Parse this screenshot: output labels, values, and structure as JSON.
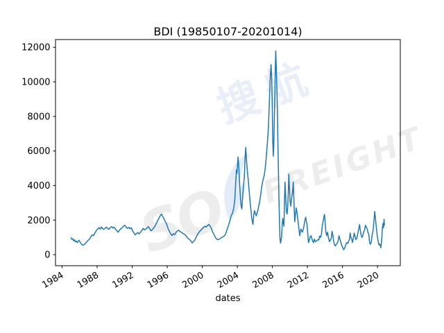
{
  "chart_data": {
    "type": "line",
    "title": "BDI (19850107-20201014)",
    "xlabel": "dates",
    "ylabel": "",
    "grid": false,
    "legend": null,
    "line_color": "#1f77b4",
    "x_tick_labels": [
      "1984",
      "1988",
      "1992",
      "1996",
      "2000",
      "2004",
      "2008",
      "2012",
      "2016",
      "2020"
    ],
    "x_tick_values": [
      1984,
      1988,
      1992,
      1996,
      2000,
      2004,
      2008,
      2012,
      2016,
      2020
    ],
    "y_tick_labels": [
      "0",
      "2000",
      "4000",
      "6000",
      "8000",
      "10000",
      "12000"
    ],
    "y_tick_values": [
      0,
      2000,
      4000,
      6000,
      8000,
      10000,
      12000
    ],
    "xlim": [
      1983.25,
      2022.6
    ],
    "ylim": [
      -640,
      12450
    ],
    "series": [
      {
        "name": "BDI",
        "x": [
          1985.02,
          1985.12,
          1985.22,
          1985.32,
          1985.42,
          1985.52,
          1985.62,
          1985.72,
          1985.82,
          1985.92,
          1986.02,
          1986.12,
          1986.22,
          1986.32,
          1986.45,
          1986.55,
          1986.7,
          1986.85,
          1987.0,
          1987.15,
          1987.3,
          1987.45,
          1987.6,
          1987.75,
          1987.9,
          1988.05,
          1988.2,
          1988.35,
          1988.5,
          1988.6,
          1988.75,
          1988.9,
          1989.05,
          1989.2,
          1989.35,
          1989.5,
          1989.65,
          1989.8,
          1989.95,
          1990.1,
          1990.25,
          1990.4,
          1990.55,
          1990.7,
          1990.85,
          1991.0,
          1991.15,
          1991.3,
          1991.45,
          1991.6,
          1991.75,
          1991.9,
          1992.05,
          1992.2,
          1992.35,
          1992.5,
          1992.65,
          1992.8,
          1992.95,
          1993.1,
          1993.25,
          1993.4,
          1993.55,
          1993.7,
          1993.85,
          1994.0,
          1994.15,
          1994.3,
          1994.45,
          1994.6,
          1994.75,
          1994.9,
          1995.05,
          1995.2,
          1995.35,
          1995.5,
          1995.65,
          1995.8,
          1995.95,
          1996.1,
          1996.25,
          1996.4,
          1996.55,
          1996.7,
          1996.85,
          1997.0,
          1997.15,
          1997.3,
          1997.45,
          1997.6,
          1997.75,
          1997.9,
          1998.05,
          1998.2,
          1998.35,
          1998.5,
          1998.65,
          1998.85,
          1999.0,
          1999.15,
          1999.3,
          1999.5,
          1999.7,
          1999.85,
          2000.0,
          2000.15,
          2000.3,
          2000.45,
          2000.6,
          2000.75,
          2000.9,
          2001.05,
          2001.2,
          2001.35,
          2001.5,
          2001.65,
          2001.8,
          2001.95,
          2002.1,
          2002.25,
          2002.4,
          2002.55,
          2002.7,
          2002.85,
          2003.0,
          2003.15,
          2003.3,
          2003.45,
          2003.6,
          2003.72,
          2003.82,
          2003.9,
          2003.96,
          2004.08,
          2004.16,
          2004.26,
          2004.36,
          2004.44,
          2004.52,
          2004.6,
          2004.7,
          2004.8,
          2004.9,
          2004.96,
          2005.05,
          2005.15,
          2005.25,
          2005.35,
          2005.45,
          2005.55,
          2005.65,
          2005.78,
          2005.88,
          2005.96,
          2006.06,
          2006.16,
          2006.26,
          2006.36,
          2006.46,
          2006.56,
          2006.66,
          2006.76,
          2006.86,
          2006.96,
          2007.06,
          2007.16,
          2007.26,
          2007.36,
          2007.46,
          2007.56,
          2007.66,
          2007.76,
          2007.85,
          2007.92,
          2007.98,
          2008.04,
          2008.1,
          2008.16,
          2008.22,
          2008.28,
          2008.33,
          2008.38,
          2008.44,
          2008.5,
          2008.56,
          2008.62,
          2008.68,
          2008.74,
          2008.8,
          2008.86,
          2008.93,
          2009.0,
          2009.06,
          2009.12,
          2009.18,
          2009.25,
          2009.32,
          2009.38,
          2009.44,
          2009.5,
          2009.56,
          2009.62,
          2009.68,
          2009.74,
          2009.8,
          2009.88,
          2009.95,
          2010.02,
          2010.1,
          2010.18,
          2010.26,
          2010.33,
          2010.38,
          2010.44,
          2010.5,
          2010.56,
          2010.64,
          2010.72,
          2010.8,
          2010.88,
          2010.96,
          2011.04,
          2011.12,
          2011.18,
          2011.26,
          2011.34,
          2011.42,
          2011.5,
          2011.6,
          2011.7,
          2011.8,
          2011.88,
          2011.96,
          2012.04,
          2012.12,
          2012.2,
          2012.3,
          2012.4,
          2012.5,
          2012.6,
          2012.7,
          2012.8,
          2012.9,
          2013.0,
          2013.1,
          2013.2,
          2013.3,
          2013.4,
          2013.5,
          2013.6,
          2013.7,
          2013.8,
          2013.88,
          2013.95,
          2014.02,
          2014.1,
          2014.2,
          2014.3,
          2014.4,
          2014.52,
          2014.62,
          2014.72,
          2014.82,
          2014.9,
          2015.0,
          2015.1,
          2015.18,
          2015.28,
          2015.38,
          2015.5,
          2015.6,
          2015.7,
          2015.8,
          2015.9,
          2016.0,
          2016.12,
          2016.2,
          2016.3,
          2016.4,
          2016.5,
          2016.6,
          2016.7,
          2016.8,
          2016.88,
          2016.96,
          2017.06,
          2017.14,
          2017.24,
          2017.34,
          2017.44,
          2017.54,
          2017.64,
          2017.74,
          2017.84,
          2017.95,
          2018.04,
          2018.12,
          2018.22,
          2018.32,
          2018.42,
          2018.52,
          2018.62,
          2018.72,
          2018.82,
          2018.92,
          2019.0,
          2019.1,
          2019.18,
          2019.28,
          2019.38,
          2019.48,
          2019.58,
          2019.68,
          2019.76,
          2019.84,
          2019.92,
          2020.0,
          2020.08,
          2020.16,
          2020.24,
          2020.3,
          2020.37,
          2020.44,
          2020.5,
          2020.56,
          2020.62,
          2020.68,
          2020.75,
          2020.79
        ],
        "y": [
          980,
          880,
          920,
          800,
          860,
          740,
          790,
          700,
          760,
          830,
          760,
          680,
          600,
          560,
          554,
          600,
          680,
          760,
          840,
          920,
          1050,
          1150,
          1100,
          1250,
          1380,
          1480,
          1560,
          1480,
          1600,
          1520,
          1460,
          1530,
          1600,
          1520,
          1470,
          1560,
          1620,
          1540,
          1580,
          1480,
          1380,
          1300,
          1420,
          1500,
          1560,
          1650,
          1700,
          1600,
          1520,
          1580,
          1500,
          1560,
          1380,
          1260,
          1150,
          1220,
          1280,
          1200,
          1300,
          1400,
          1520,
          1430,
          1480,
          1550,
          1620,
          1500,
          1380,
          1450,
          1550,
          1650,
          1800,
          1950,
          2100,
          2250,
          2350,
          2200,
          2050,
          1900,
          1750,
          1500,
          1350,
          1200,
          1100,
          1220,
          1150,
          1300,
          1360,
          1420,
          1350,
          1300,
          1250,
          1200,
          1150,
          1050,
          950,
          900,
          820,
          680,
          760,
          850,
          1000,
          1200,
          1350,
          1420,
          1500,
          1580,
          1650,
          1600,
          1680,
          1750,
          1650,
          1500,
          1300,
          1150,
          1000,
          900,
          860,
          900,
          950,
          1000,
          1050,
          1100,
          1250,
          1500,
          1700,
          1950,
          2250,
          2400,
          2700,
          3200,
          4200,
          4900,
          4700,
          5650,
          5200,
          4100,
          3300,
          2800,
          2650,
          3300,
          4000,
          4500,
          5700,
          6200,
          5500,
          4800,
          4300,
          3700,
          3100,
          2600,
          2100,
          1750,
          2300,
          2550,
          2380,
          2250,
          2420,
          2600,
          2850,
          3100,
          3450,
          3850,
          4150,
          4400,
          4550,
          4900,
          5400,
          6000,
          6700,
          7400,
          8900,
          10300,
          11000,
          10200,
          9000,
          6700,
          5700,
          6300,
          7900,
          9000,
          10700,
          11790,
          10900,
          9900,
          8700,
          6900,
          5100,
          3600,
          2200,
          1000,
          663,
          830,
          1100,
          1700,
          2100,
          1850,
          1650,
          3000,
          4200,
          3600,
          2900,
          2450,
          2350,
          2700,
          3300,
          4660,
          3850,
          3100,
          2800,
          3200,
          3450,
          3800,
          4200,
          3500,
          2500,
          1900,
          2350,
          2700,
          2450,
          2150,
          1800,
          1450,
          1100,
          1300,
          1480,
          1380,
          1300,
          1420,
          1650,
          1950,
          2170,
          1900,
          1750,
          1200,
          700,
          800,
          1000,
          1100,
          950,
          780,
          700,
          900,
          760,
          770,
          820,
          880,
          850,
          1080,
          1000,
          1180,
          1700,
          1950,
          2200,
          2330,
          1900,
          1350,
          1100,
          1300,
          980,
          750,
          850,
          950,
          1350,
          1150,
          750,
          560,
          510,
          590,
          640,
          780,
          1100,
          900,
          750,
          560,
          450,
          290,
          330,
          450,
          600,
          700,
          650,
          760,
          900,
          1250,
          990,
          900,
          700,
          950,
          1250,
          1050,
          870,
          950,
          1200,
          1450,
          1740,
          1400,
          1150,
          1000,
          1080,
          1320,
          1420,
          1700,
          1600,
          1480,
          1280,
          1200,
          680,
          600,
          720,
          1100,
          1350,
          1900,
          2500,
          2150,
          1700,
          1300,
          970,
          750,
          570,
          620,
          550,
          400,
          650,
          1050,
          1550,
          1800,
          1550,
          2050,
          1710
        ]
      }
    ]
  },
  "watermark": {
    "text_so": "SO",
    "text_freight": "FREIGHT",
    "text_cn": "搜航",
    "color_gray": "#ededed",
    "color_blue": "#e3ecf8"
  }
}
